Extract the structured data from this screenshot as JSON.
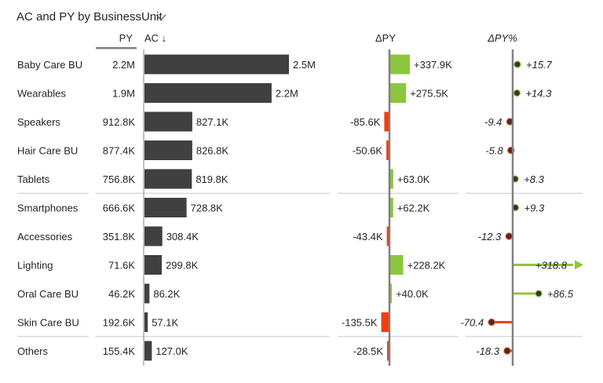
{
  "header": {
    "title": "AC and PY by BusinessUnit"
  },
  "chart_data": {
    "type": "bar",
    "columns": {
      "py": "PY",
      "ac": "AC ↓",
      "delta_py": "ΔPY",
      "delta_py_pct": "ΔPY%"
    },
    "colors": {
      "ac_bar": "#404040",
      "positive": "#8cc63f",
      "negative": "#f23d0c",
      "axis": "#808080",
      "dot": "#333333"
    },
    "rows": [
      {
        "name": "Baby Care BU",
        "py": 2200000,
        "py_label": "2.2M",
        "ac": 2500000,
        "ac_label": "2.5M",
        "dpy": 337900,
        "dpy_label": "+337.9K",
        "dpct": 15.7,
        "dpct_label": "+15.7"
      },
      {
        "name": "Wearables",
        "py": 1900000,
        "py_label": "1.9M",
        "ac": 2200000,
        "ac_label": "2.2M",
        "dpy": 275500,
        "dpy_label": "+275.5K",
        "dpct": 14.3,
        "dpct_label": "+14.3"
      },
      {
        "name": "Speakers",
        "py": 912800,
        "py_label": "912.8K",
        "ac": 827100,
        "ac_label": "827.1K",
        "dpy": -85600,
        "dpy_label": "-85.6K",
        "dpct": -9.4,
        "dpct_label": "-9.4"
      },
      {
        "name": "Hair Care BU",
        "py": 877400,
        "py_label": "877.4K",
        "ac": 826800,
        "ac_label": "826.8K",
        "dpy": -50600,
        "dpy_label": "-50.6K",
        "dpct": -5.8,
        "dpct_label": "-5.8"
      },
      {
        "name": "Tablets",
        "py": 756800,
        "py_label": "756.8K",
        "ac": 819800,
        "ac_label": "819.8K",
        "dpy": 63000,
        "dpy_label": "+63.0K",
        "dpct": 8.3,
        "dpct_label": "+8.3"
      },
      {
        "name": "Smartphones",
        "py": 666600,
        "py_label": "666.6K",
        "ac": 728800,
        "ac_label": "728.8K",
        "dpy": 62200,
        "dpy_label": "+62.2K",
        "dpct": 9.3,
        "dpct_label": "+9.3"
      },
      {
        "name": "Accessories",
        "py": 351800,
        "py_label": "351.8K",
        "ac": 308400,
        "ac_label": "308.4K",
        "dpy": -43400,
        "dpy_label": "-43.4K",
        "dpct": -12.3,
        "dpct_label": "-12.3"
      },
      {
        "name": "Lighting",
        "py": 71600,
        "py_label": "71.6K",
        "ac": 299800,
        "ac_label": "299.8K",
        "dpy": 228200,
        "dpy_label": "+228.2K",
        "dpct": 318.8,
        "dpct_label": "+318.8",
        "dpct_clipped": true
      },
      {
        "name": "Oral Care BU",
        "py": 46200,
        "py_label": "46.2K",
        "ac": 86200,
        "ac_label": "86.2K",
        "dpy": 40000,
        "dpy_label": "+40.0K",
        "dpct": 86.5,
        "dpct_label": "+86.5"
      },
      {
        "name": "Skin Care BU",
        "py": 192600,
        "py_label": "192.6K",
        "ac": 57100,
        "ac_label": "57.1K",
        "dpy": -135500,
        "dpy_label": "-135.5K",
        "dpct": -70.4,
        "dpct_label": "-70.4"
      },
      {
        "name": "Others",
        "py": 155400,
        "py_label": "155.4K",
        "ac": 127000,
        "ac_label": "127.0K",
        "dpy": -28500,
        "dpy_label": "-28.5K",
        "dpct": -18.3,
        "dpct_label": "-18.3"
      }
    ],
    "separators_after_rows": [
      4,
      9
    ]
  }
}
